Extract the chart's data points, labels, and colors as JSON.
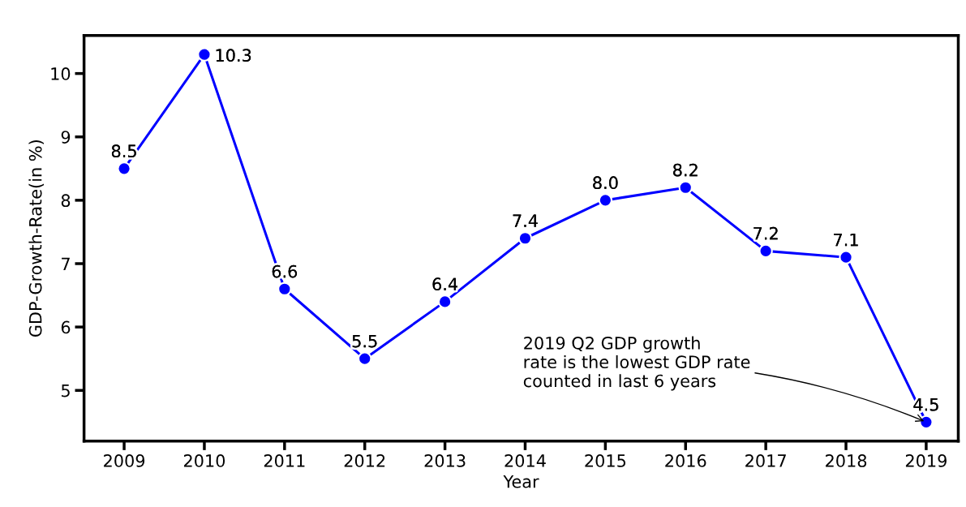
{
  "chart_data": {
    "type": "line",
    "xlabel": "Year",
    "ylabel": "GDP-Growth-Rate(in %)",
    "x": [
      2009,
      2010,
      2011,
      2012,
      2013,
      2014,
      2015,
      2016,
      2017,
      2018,
      2019
    ],
    "series": [
      {
        "color": "#0000ff",
        "values": [
          8.5,
          10.3,
          6.6,
          5.5,
          6.4,
          7.4,
          8.0,
          8.2,
          7.2,
          7.1,
          4.5
        ]
      }
    ],
    "xlim": [
      2008.5,
      2019.4
    ],
    "xticks": [
      2009,
      2010,
      2011,
      2012,
      2013,
      2014,
      2015,
      2016,
      2017,
      2018,
      2019
    ],
    "ylim": [
      4.2,
      10.6
    ],
    "yticks": [
      5,
      6,
      7,
      8,
      9,
      10
    ],
    "marker": "circle",
    "line_style": "solid",
    "value_labels": [
      "8.5",
      "10.3",
      "6.6",
      "5.5",
      "6.4",
      "7.4",
      "8.0",
      "8.2",
      "7.2",
      "7.1",
      "4.5"
    ],
    "grid": false,
    "legend": false,
    "annotations": [
      {
        "text": "2019 Q2 GDP growth\nrate is the lowest GDP rate\ncounted in last 6 years",
        "x": 2019,
        "y": 4.5
      }
    ]
  }
}
